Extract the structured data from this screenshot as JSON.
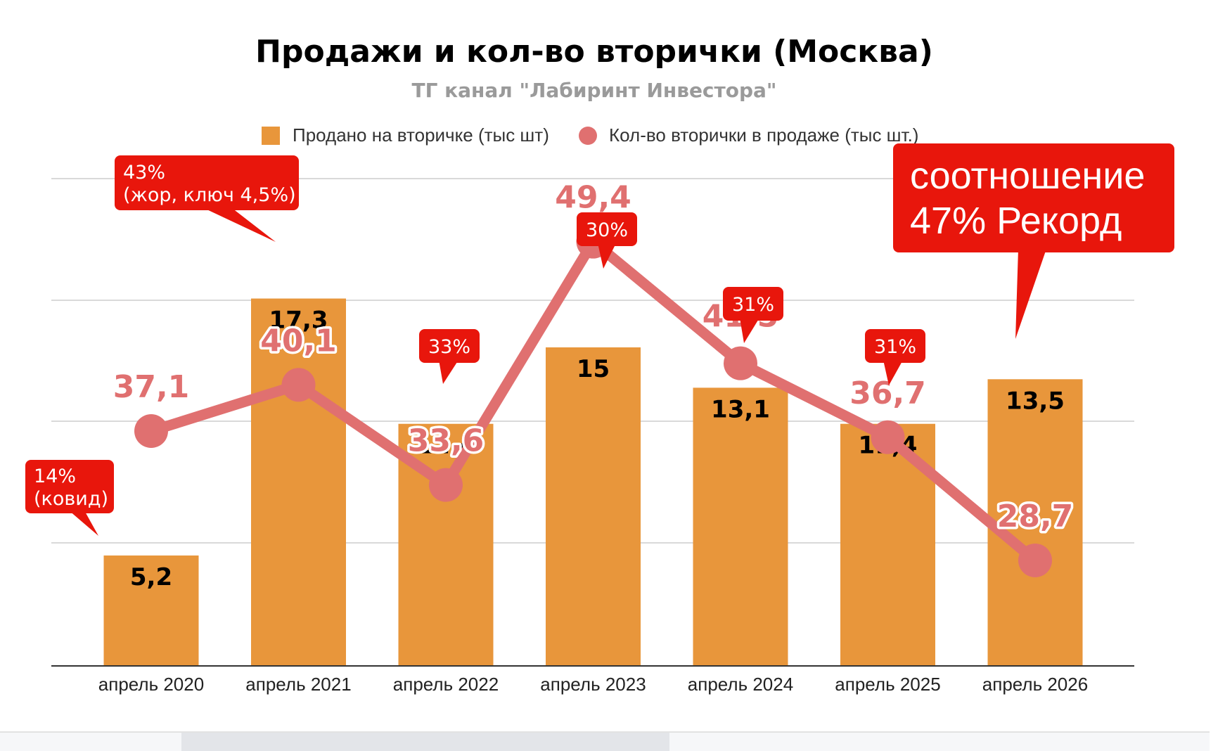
{
  "chart_data": {
    "type": "bar",
    "title": "Продажи и кол-во вторички (Москва)",
    "subtitle": "ТГ канал \"Лабиринт Инвестора\"",
    "categories": [
      "апрель 2020",
      "апрель 2021",
      "апрель 2022",
      "апрель 2023",
      "апрель 2024",
      "апрель 2025",
      "апрель 2026"
    ],
    "series": [
      {
        "name": "Продано на вторичке (тыс шт)",
        "type": "bar",
        "values": [
          5.2,
          17.3,
          11.4,
          15,
          13.1,
          11.4,
          13.5
        ],
        "labels": [
          "5,2",
          "17,3",
          "11,4",
          "15",
          "13,1",
          "11,4",
          "13,5"
        ],
        "color": "#e8963b"
      },
      {
        "name": "Кол-во вторички в продаже (тыс шт.)",
        "type": "line",
        "values": [
          37.1,
          40.1,
          33.6,
          49.4,
          41.5,
          36.7,
          28.7
        ],
        "labels": [
          "37,1",
          "40,1",
          "33,6",
          "49,4",
          "41,5",
          "36,7",
          "28,7"
        ],
        "color": "#e07070"
      }
    ],
    "annotations": [
      {
        "category_index": 0,
        "lines": [
          "14%",
          "(ковид)"
        ]
      },
      {
        "category_index": 1,
        "lines": [
          "43%",
          "(жор, ключ 4,5%)"
        ]
      },
      {
        "category_index": 2,
        "lines": [
          "33%"
        ]
      },
      {
        "category_index": 3,
        "lines": [
          "30%"
        ]
      },
      {
        "category_index": 4,
        "lines": [
          "31%"
        ]
      },
      {
        "category_index": 5,
        "lines": [
          "31%"
        ]
      },
      {
        "category_index": 6,
        "lines": [
          "соотношение",
          "47% Рекорд"
        ]
      }
    ],
    "legend_position": "top",
    "grid": true,
    "colors": {
      "callout": "#e8160c",
      "bar": "#e8963b",
      "line": "#e07070"
    }
  }
}
